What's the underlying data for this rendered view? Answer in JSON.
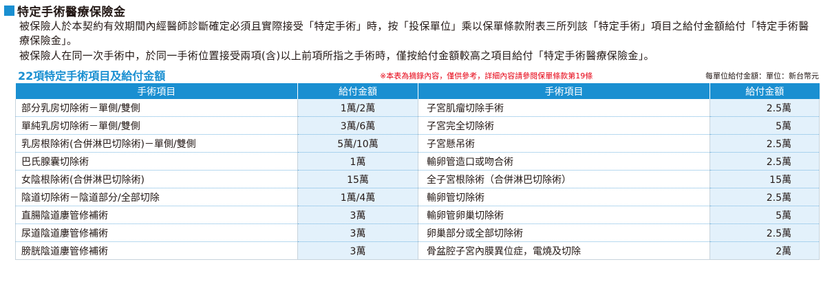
{
  "header": {
    "title": "特定手術醫療保險金",
    "para1": "被保險人於本契約有效期間內經醫師診斷確定必須且實際接受「特定手術」時，按「投保單位」乘以保單條款附表三所列該「特定手術」項目之給付金額給付「特定手術醫療保險金」。",
    "para2": "被保險人在同一次手術中，於同一手術位置接受兩項(含)以上前項所指之手術時，僅按給付金額較高之項目給付「特定手術醫療保險金」。"
  },
  "section": {
    "subtitle": "22項特定手術項目及給付金額",
    "notice": "※本表為摘錄內容，僅供參考，詳細內容請參閱保單條款第19條",
    "unit": "每單位給付金額：單位：新台幣元"
  },
  "table": {
    "headers": [
      "手術項目",
      "給付金額",
      "手術項目",
      "給付金額"
    ],
    "rows": [
      {
        "left_name": "部分乳房切除術－單側/雙側",
        "left_amt": "1萬/2萬",
        "right_name": "子宮肌瘤切除手術",
        "right_amt": "2.5萬"
      },
      {
        "left_name": "單純乳房切除術－單側/雙側",
        "left_amt": "3萬/6萬",
        "right_name": "子宮完全切除術",
        "right_amt": "5萬"
      },
      {
        "left_name": "乳房根除術(合併淋巴切除術)－單側/雙側",
        "left_amt": "5萬/10萬",
        "right_name": "子宮懸吊術",
        "right_amt": "2.5萬"
      },
      {
        "left_name": "巴氏腺囊切除術",
        "left_amt": "1萬",
        "right_name": "輸卵管造口或吻合術",
        "right_amt": "2.5萬"
      },
      {
        "left_name": "女陰根除術(合併淋巴切除術)",
        "left_amt": "15萬",
        "right_name": "全子宮根除術（合併淋巴切除術）",
        "right_amt": "15萬"
      },
      {
        "left_name": "陰道切除術－陰道部分/全部切除",
        "left_amt": "1萬/4萬",
        "right_name": "輸卵管切除術",
        "right_amt": "2.5萬"
      },
      {
        "left_name": "直腸陰道廔管修補術",
        "left_amt": "3萬",
        "right_name": "輸卵管卵巢切除術",
        "right_amt": "5萬"
      },
      {
        "left_name": "尿道陰道廔管修補術",
        "left_amt": "3萬",
        "right_name": "卵巢部分或全部切除術",
        "right_amt": "2.5萬"
      },
      {
        "left_name": "膀胱陰道廔管修補術",
        "left_amt": "3萬",
        "right_name": "骨盆腔子宮內膜異位症，電燒及切除",
        "right_amt": "2萬"
      }
    ]
  }
}
